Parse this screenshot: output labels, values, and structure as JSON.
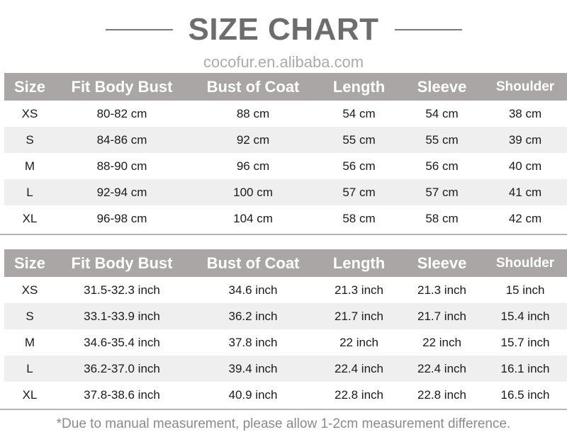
{
  "title": "SIZE CHART",
  "headers": [
    "Size",
    "Fit Body Bust",
    "Bust of Coat",
    "Length",
    "Sleeve",
    "Shoulder"
  ],
  "cm_rows": [
    [
      "XS",
      "80-82 cm",
      "88 cm",
      "54 cm",
      "54 cm",
      "38 cm"
    ],
    [
      "S",
      "84-86 cm",
      "92 cm",
      "55 cm",
      "55 cm",
      "39 cm"
    ],
    [
      "M",
      "88-90 cm",
      "96 cm",
      "56 cm",
      "56 cm",
      "40 cm"
    ],
    [
      "L",
      "92-94 cm",
      "100 cm",
      "57 cm",
      "57 cm",
      "41 cm"
    ],
    [
      "XL",
      "96-98 cm",
      "104 cm",
      "58 cm",
      "58 cm",
      "42 cm"
    ]
  ],
  "inch_rows": [
    [
      "XS",
      "31.5-32.3 inch",
      "34.6 inch",
      "21.3 inch",
      "21.3 inch",
      "15 inch"
    ],
    [
      "S",
      "33.1-33.9 inch",
      "36.2 inch",
      "21.7 inch",
      "21.7 inch",
      "15.4 inch"
    ],
    [
      "M",
      "34.6-35.4 inch",
      "37.8 inch",
      "22 inch",
      "22 inch",
      "15.7 inch"
    ],
    [
      "L",
      "36.2-37.0 inch",
      "39.4 inch",
      "22.4 inch",
      "22.4 inch",
      "16.1 inch"
    ],
    [
      "XL",
      "37.8-38.6 inch",
      "40.9 inch",
      "22.8 inch",
      "22.8 inch",
      "16.5 inch"
    ]
  ],
  "watermark": "cocofur.en.alibaba.com",
  "note": "*Due to manual measurement, please allow 1-2cm measurement difference.",
  "colors": {
    "header_bg": "#a9a6a5",
    "alt_row": "#efefef",
    "title": "#6d6d6d"
  }
}
